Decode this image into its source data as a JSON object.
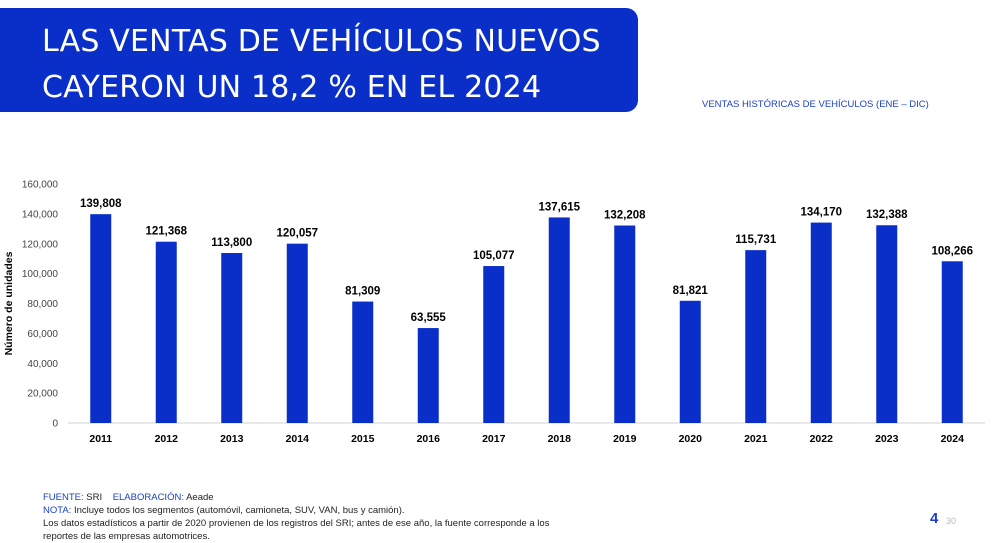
{
  "header": {
    "title_line1": "LAS VENTAS DE VEHÍCULOS NUEVOS",
    "title_line2": "CAYERON UN 18,2 % EN EL 2024",
    "subtitle": "VENTAS HISTÓRICAS DE VEHÍCULOS (ENE – DIC)"
  },
  "colors": {
    "accent": "#0a2fc9",
    "bar": "#0a2fc9",
    "accent_text": "#1b3fc4"
  },
  "chart_data": {
    "type": "bar",
    "title": "VENTAS HISTÓRICAS DE VEHÍCULOS (ENE – DIC)",
    "ylabel": "Número de unidades",
    "xlabel": "",
    "ylim": [
      0,
      160000
    ],
    "yticks": [
      0,
      20000,
      40000,
      60000,
      80000,
      100000,
      120000,
      140000,
      160000
    ],
    "ytick_labels": [
      "0",
      "20,000",
      "40,000",
      "60,000",
      "80,000",
      "100,000",
      "120,000",
      "140,000",
      "160,000"
    ],
    "categories": [
      "2011",
      "2012",
      "2013",
      "2014",
      "2015",
      "2016",
      "2017",
      "2018",
      "2019",
      "2020",
      "2021",
      "2022",
      "2023",
      "2024"
    ],
    "values": [
      139808,
      121368,
      113800,
      120057,
      81309,
      63555,
      105077,
      137615,
      132208,
      81821,
      115731,
      134170,
      132388,
      108266
    ],
    "value_labels": [
      "139,808",
      "121,368",
      "113,800",
      "120,057",
      "81,309",
      "63,555",
      "105,077",
      "137,615",
      "132,208",
      "81,821",
      "115,731",
      "134,170",
      "132,388",
      "108,266"
    ],
    "grid": false,
    "legend": "none"
  },
  "footer": {
    "source_label": "FUENTE:",
    "source_value": "SRI",
    "elab_label": "ELABORACIÓN:",
    "elab_value": "Aeade",
    "note_label": "NOTA:",
    "note_text": "Incluye todos los segmentos (automóvil, camioneta, SUV, VAN, bus y camión).",
    "note_line2": "Los datos estadísticos a partir de 2020 provienen de los registros del SRI; antes de ese año, la fuente corresponde a los",
    "note_line3": "reportes de las empresas automotrices."
  },
  "page": {
    "number": "4",
    "total": "30"
  }
}
